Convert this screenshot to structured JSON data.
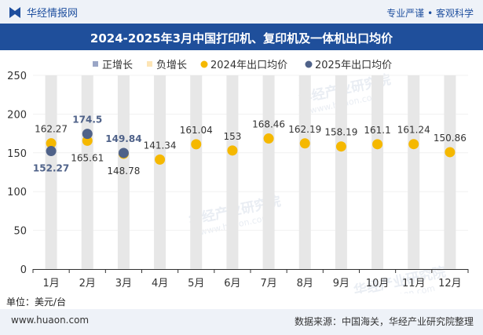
{
  "header": {
    "brand": "华经情报网",
    "tagline": "专业严谨 • 客观科学",
    "title": "2024-2025年3月中国打印机、复印机及一体机出口均价"
  },
  "unit_label": "单位：美元/台",
  "footer": {
    "site": "www.huaon.com",
    "source": "数据来源：中国海关，华经产业研究院整理"
  },
  "colors": {
    "header_bg": "#1f4f9b",
    "top_bg": "#eef2f8",
    "bar": "#e7e7e7",
    "series_2024": "#f5b800",
    "series_2025": "#4f6289",
    "increase": "#9aa6c6",
    "decrease": "#fde5b6"
  },
  "chart_data": {
    "type": "bar",
    "categories": [
      "1月",
      "2月",
      "3月",
      "4月",
      "5月",
      "6月",
      "7月",
      "8月",
      "9月",
      "10月",
      "11月",
      "12月"
    ],
    "ylim": [
      0,
      250
    ],
    "yticks": [
      0,
      50,
      100,
      150,
      200,
      250
    ],
    "legend_position": "top",
    "legend": [
      "正增长",
      "负增长",
      "2024年出口均价",
      "2025年出口均价"
    ],
    "series": [
      {
        "name": "2024年出口均价",
        "type": "scatter",
        "values": [
          162.27,
          165.61,
          148.78,
          141.34,
          161.04,
          153,
          168.46,
          162.19,
          158.19,
          161.1,
          161.24,
          150.86
        ]
      },
      {
        "name": "2025年出口均价",
        "type": "scatter",
        "values": [
          152.27,
          174.5,
          149.84,
          null,
          null,
          null,
          null,
          null,
          null,
          null,
          null,
          null
        ]
      }
    ],
    "watermark": [
      "华经产业研究院",
      "www.huaon.com"
    ]
  }
}
